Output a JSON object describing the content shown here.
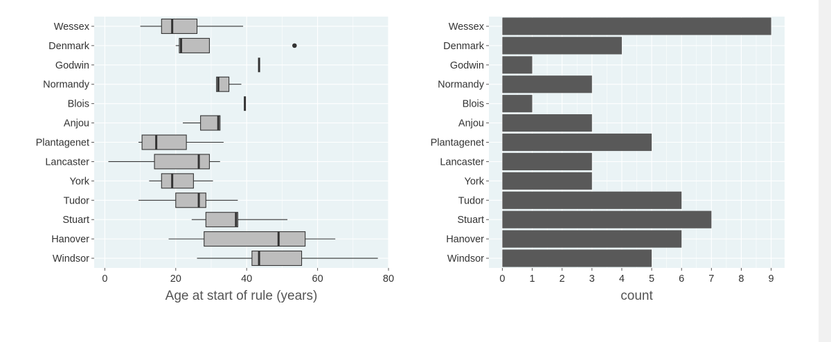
{
  "chart_data": [
    {
      "type": "boxplot",
      "title": "",
      "xlabel": "Age at start of rule (years)",
      "ylabel": "",
      "xlim": [
        -3,
        80
      ],
      "xticks": [
        0,
        20,
        40,
        60,
        80
      ],
      "grid": true,
      "categories": [
        "Wessex",
        "Denmark",
        "Godwin",
        "Normandy",
        "Blois",
        "Anjou",
        "Plantagenet",
        "Lancaster",
        "York",
        "Tudor",
        "Stuart",
        "Hanover",
        "Windsor"
      ],
      "boxes": [
        {
          "min": 10,
          "q1": 16,
          "median": 19,
          "q3": 26,
          "max": 39,
          "outliers": []
        },
        {
          "min": 20,
          "q1": 21,
          "median": 21.5,
          "q3": 29.5,
          "max": 29.5,
          "outliers": [
            53.5
          ]
        },
        {
          "min": 43.5,
          "q1": 43.5,
          "median": 43.5,
          "q3": 43.5,
          "max": 43.5,
          "outliers": []
        },
        {
          "min": 31.5,
          "q1": 31.5,
          "median": 32,
          "q3": 35,
          "max": 38.5,
          "outliers": []
        },
        {
          "min": 39.5,
          "q1": 39.5,
          "median": 39.5,
          "q3": 39.5,
          "max": 39.5,
          "outliers": []
        },
        {
          "min": 22,
          "q1": 27,
          "median": 32,
          "q3": 32.5,
          "max": 32.5,
          "outliers": []
        },
        {
          "min": 9.5,
          "q1": 10.5,
          "median": 14.5,
          "q3": 23,
          "max": 33.5,
          "outliers": []
        },
        {
          "min": 1,
          "q1": 14,
          "median": 26.5,
          "q3": 29.5,
          "max": 32.5,
          "outliers": []
        },
        {
          "min": 12.5,
          "q1": 16,
          "median": 19,
          "q3": 25,
          "max": 30.5,
          "outliers": []
        },
        {
          "min": 9.5,
          "q1": 20,
          "median": 26.5,
          "q3": 28.5,
          "max": 37.5,
          "outliers": []
        },
        {
          "min": 24.5,
          "q1": 28.5,
          "median": 37,
          "q3": 37.5,
          "max": 51.5,
          "outliers": []
        },
        {
          "min": 18,
          "q1": 28,
          "median": 49,
          "q3": 56.5,
          "max": 65,
          "outliers": []
        },
        {
          "min": 26,
          "q1": 41.5,
          "median": 43.5,
          "q3": 55.5,
          "max": 77,
          "outliers": []
        }
      ]
    },
    {
      "type": "bar",
      "orientation": "horizontal",
      "title": "",
      "xlabel": "count",
      "ylabel": "",
      "xlim": [
        -0.45,
        9.45
      ],
      "xticks": [
        0,
        1,
        2,
        3,
        4,
        5,
        6,
        7,
        8,
        9
      ],
      "grid": true,
      "categories": [
        "Wessex",
        "Denmark",
        "Godwin",
        "Normandy",
        "Blois",
        "Anjou",
        "Plantagenet",
        "Lancaster",
        "York",
        "Tudor",
        "Stuart",
        "Hanover",
        "Windsor"
      ],
      "values": [
        9,
        4,
        1,
        3,
        1,
        3,
        5,
        3,
        3,
        6,
        7,
        6,
        5
      ]
    }
  ]
}
